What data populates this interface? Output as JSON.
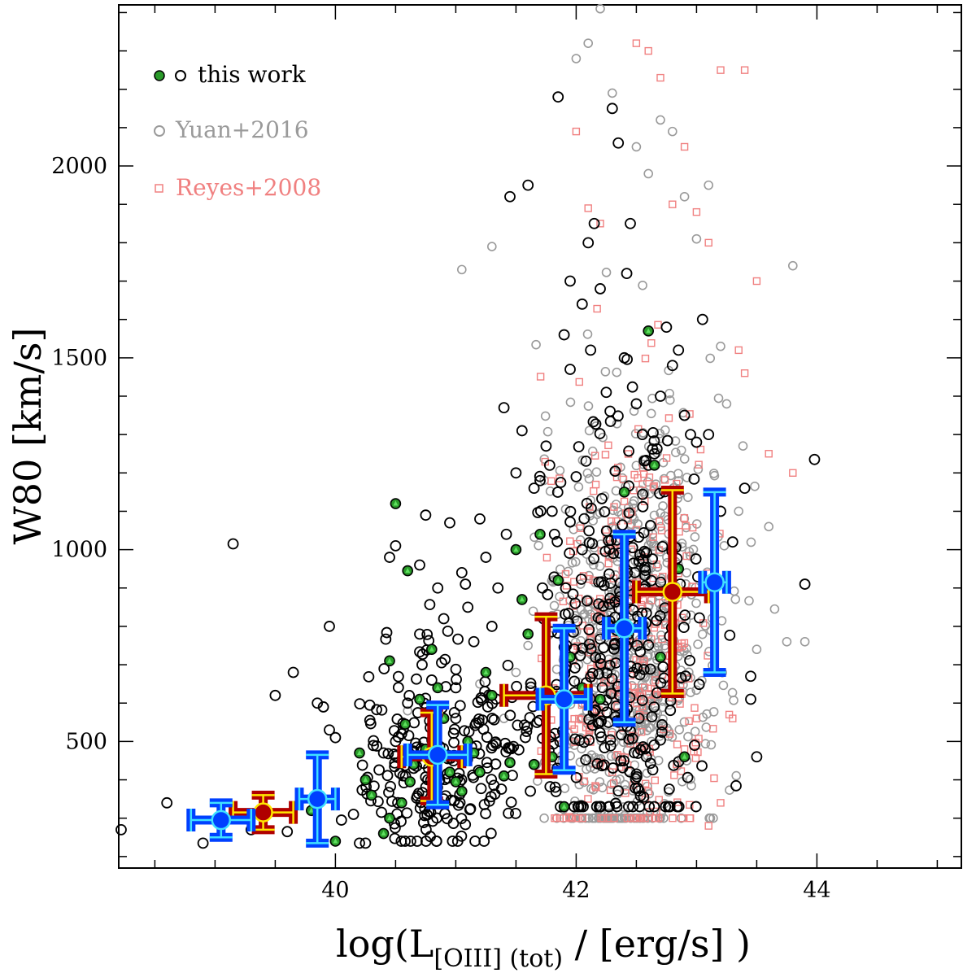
{
  "chart_data": {
    "type": "scatter",
    "xlabel_main": "log(L",
    "xlabel_sub": "[OIII] (tot)",
    "xlabel_tail": " / [erg/s] )",
    "ylabel": "W80 [km/s]",
    "xlim": [
      38.2,
      45.2
    ],
    "ylim": [
      170,
      2420
    ],
    "x_ticks": [
      40,
      42,
      44
    ],
    "y_ticks": [
      500,
      1000,
      1500,
      2000
    ],
    "legend": [
      {
        "name": "this work",
        "color": "#000000"
      },
      {
        "name": "Yuan+2016",
        "color": "#9a9a9a"
      },
      {
        "name": "Reyes+2008",
        "color": "#f08080"
      }
    ],
    "series": [
      {
        "name": "this work",
        "marker": "open-circle",
        "points": [
          [
            38.22,
            270
          ],
          [
            38.6,
            340
          ],
          [
            38.9,
            235
          ],
          [
            39.15,
            1015
          ],
          [
            39.3,
            270
          ],
          [
            39.5,
            620
          ],
          [
            39.6,
            265
          ],
          [
            39.65,
            680
          ],
          [
            39.85,
            600
          ],
          [
            39.9,
            590
          ],
          [
            39.95,
            800
          ],
          [
            39.95,
            530
          ],
          [
            40.0,
            510
          ],
          [
            40.05,
            295
          ],
          [
            40.15,
            310
          ],
          [
            40.2,
            235
          ],
          [
            40.25,
            235
          ],
          [
            40.4,
            470
          ],
          [
            40.45,
            980
          ],
          [
            40.5,
            1010
          ],
          [
            40.5,
            500
          ],
          [
            40.55,
            520
          ],
          [
            40.6,
            600
          ],
          [
            40.65,
            430
          ],
          [
            40.7,
            960
          ],
          [
            40.7,
            780
          ],
          [
            40.72,
            700
          ],
          [
            40.75,
            1090
          ],
          [
            40.8,
            660
          ],
          [
            40.85,
            900
          ],
          [
            40.9,
            820
          ],
          [
            40.95,
            1070
          ],
          [
            41.0,
            560
          ],
          [
            41.0,
            640
          ],
          [
            41.05,
            940
          ],
          [
            41.08,
            910
          ],
          [
            41.1,
            850
          ],
          [
            41.15,
            760
          ],
          [
            41.2,
            1080
          ],
          [
            41.25,
            980
          ],
          [
            41.3,
            800
          ],
          [
            41.35,
            900
          ],
          [
            41.4,
            1370
          ],
          [
            41.42,
            1040
          ],
          [
            41.45,
            1920
          ],
          [
            41.5,
            1200
          ],
          [
            41.55,
            1310
          ],
          [
            41.6,
            1950
          ],
          [
            41.65,
            1160
          ],
          [
            41.7,
            1180
          ],
          [
            41.72,
            900
          ],
          [
            41.75,
            1270
          ],
          [
            41.78,
            1220
          ],
          [
            41.8,
            1100
          ],
          [
            41.82,
            1040
          ],
          [
            41.85,
            2180
          ],
          [
            41.9,
            1560
          ],
          [
            41.95,
            1700
          ],
          [
            41.95,
            1470
          ],
          [
            42.0,
            1190
          ],
          [
            42.05,
            1640
          ],
          [
            42.05,
            1000
          ],
          [
            42.1,
            1800
          ],
          [
            42.12,
            1520
          ],
          [
            42.15,
            1850
          ],
          [
            42.2,
            1680
          ],
          [
            42.25,
            1410
          ],
          [
            42.3,
            2150
          ],
          [
            42.35,
            2060
          ],
          [
            42.4,
            1500
          ],
          [
            42.42,
            1720
          ],
          [
            42.45,
            1850
          ],
          [
            42.5,
            1380
          ],
          [
            42.55,
            1300
          ],
          [
            42.6,
            1220
          ],
          [
            42.65,
            1250
          ],
          [
            42.7,
            1400
          ],
          [
            42.75,
            1580
          ],
          [
            42.8,
            1480
          ],
          [
            42.85,
            1520
          ],
          [
            42.9,
            1350
          ],
          [
            42.95,
            1300
          ],
          [
            43.0,
            1280
          ],
          [
            43.05,
            1600
          ],
          [
            43.1,
            1300
          ],
          [
            43.2,
            1100
          ],
          [
            43.3,
            1020
          ],
          [
            43.4,
            1160
          ],
          [
            43.45,
            670
          ],
          [
            43.5,
            460
          ],
          [
            43.45,
            610
          ],
          [
            43.9,
            910
          ],
          [
            43.98,
            1235
          ]
        ]
      },
      {
        "name": "this work (green)",
        "marker": "green-filled-triangle",
        "points": [
          [
            39.8,
            320
          ],
          [
            40.0,
            240
          ],
          [
            40.2,
            470
          ],
          [
            40.25,
            400
          ],
          [
            40.3,
            360
          ],
          [
            40.4,
            260
          ],
          [
            40.45,
            300
          ],
          [
            40.45,
            710
          ],
          [
            40.5,
            1120
          ],
          [
            40.55,
            340
          ],
          [
            40.58,
            545
          ],
          [
            40.6,
            945
          ],
          [
            40.62,
            395
          ],
          [
            40.65,
            440
          ],
          [
            40.7,
            610
          ],
          [
            40.75,
            480
          ],
          [
            40.8,
            740
          ],
          [
            40.85,
            640
          ],
          [
            40.9,
            560
          ],
          [
            40.95,
            420
          ],
          [
            41.0,
            395
          ],
          [
            41.05,
            370
          ],
          [
            41.1,
            500
          ],
          [
            41.15,
            470
          ],
          [
            41.2,
            420
          ],
          [
            41.25,
            680
          ],
          [
            41.3,
            620
          ],
          [
            41.4,
            410
          ],
          [
            41.45,
            445
          ],
          [
            41.5,
            1000
          ],
          [
            41.55,
            870
          ],
          [
            41.6,
            780
          ],
          [
            41.65,
            440
          ],
          [
            41.7,
            1040
          ],
          [
            41.75,
            600
          ],
          [
            41.8,
            460
          ],
          [
            41.85,
            920
          ],
          [
            41.9,
            330
          ],
          [
            41.95,
            720
          ],
          [
            42.05,
            640
          ],
          [
            42.2,
            610
          ],
          [
            42.35,
            550
          ],
          [
            42.4,
            1150
          ],
          [
            42.6,
            1570
          ],
          [
            42.65,
            1220
          ],
          [
            42.7,
            720
          ],
          [
            42.85,
            950
          ],
          [
            42.9,
            460
          ]
        ]
      },
      {
        "name": "Yuan+2016",
        "marker": "open-circle-grey",
        "points": [
          [
            41.05,
            1730
          ],
          [
            41.3,
            1790
          ],
          [
            41.5,
            680
          ],
          [
            42.0,
            2280
          ],
          [
            42.1,
            2320
          ],
          [
            42.2,
            2410
          ],
          [
            42.3,
            2190
          ],
          [
            42.5,
            2050
          ],
          [
            42.6,
            1980
          ],
          [
            42.7,
            2120
          ],
          [
            42.8,
            2090
          ],
          [
            42.9,
            1920
          ],
          [
            43.0,
            1810
          ],
          [
            43.1,
            1950
          ],
          [
            43.2,
            1530
          ],
          [
            43.25,
            1380
          ],
          [
            43.35,
            1100
          ],
          [
            43.5,
            740
          ],
          [
            43.6,
            1060
          ],
          [
            43.75,
            760
          ],
          [
            43.8,
            1740
          ],
          [
            43.9,
            760
          ],
          [
            40.6,
            580
          ],
          [
            41.2,
            650
          ],
          [
            41.4,
            560
          ],
          [
            41.6,
            750
          ]
        ]
      },
      {
        "name": "Reyes+2008",
        "marker": "open-square-salmon",
        "points": [
          [
            42.0,
            2090
          ],
          [
            42.1,
            1890
          ],
          [
            42.2,
            1850
          ],
          [
            42.5,
            2320
          ],
          [
            42.6,
            2300
          ],
          [
            42.7,
            2230
          ],
          [
            42.8,
            1900
          ],
          [
            42.9,
            2050
          ],
          [
            43.0,
            1880
          ],
          [
            43.1,
            1800
          ],
          [
            43.2,
            2250
          ],
          [
            43.35,
            1520
          ],
          [
            43.4,
            2250
          ],
          [
            43.5,
            1700
          ],
          [
            43.6,
            1250
          ],
          [
            43.8,
            1200
          ],
          [
            43.4,
            1460
          ],
          [
            43.0,
            560
          ],
          [
            43.2,
            340
          ],
          [
            43.3,
            560
          ],
          [
            43.1,
            280
          ],
          [
            42.3,
            420
          ],
          [
            42.6,
            370
          ],
          [
            42.9,
            480
          ]
        ]
      }
    ],
    "summary_points": [
      {
        "name": "binned (red)",
        "color": "#b00000",
        "inner": "#ffe600",
        "points": [
          {
            "x": 39.4,
            "y": 315,
            "xerr": [
              0.25,
              0.25
            ],
            "yerr": [
              45,
              45
            ]
          },
          {
            "x": 40.8,
            "y": 460,
            "xerr": [
              0.25,
              0.25
            ],
            "yerr": [
              115,
              115
            ]
          },
          {
            "x": 41.75,
            "y": 620,
            "xerr": [
              0.35,
              0.35
            ],
            "yerr": [
              205,
              205
            ]
          },
          {
            "x": 42.8,
            "y": 890,
            "xerr": [
              0.3,
              0.3
            ],
            "yerr": [
              265,
              265
            ]
          }
        ]
      },
      {
        "name": "binned (blue)",
        "color": "#0040ff",
        "inner": "#40e0ff",
        "points": [
          {
            "x": 39.05,
            "y": 295,
            "xerr": [
              0.25,
              0.25
            ],
            "yerr": [
              45,
              45
            ]
          },
          {
            "x": 39.85,
            "y": 350,
            "xerr": [
              0.15,
              0.15
            ],
            "yerr": [
              115,
              115
            ]
          },
          {
            "x": 40.85,
            "y": 465,
            "xerr": [
              0.25,
              0.25
            ],
            "yerr": [
              130,
              130
            ]
          },
          {
            "x": 41.9,
            "y": 610,
            "xerr": [
              0.2,
              0.2
            ],
            "yerr": [
              185,
              185
            ]
          },
          {
            "x": 42.4,
            "y": 795,
            "xerr": [
              0.15,
              0.15
            ],
            "yerr": [
              245,
              245
            ]
          },
          {
            "x": 43.15,
            "y": 915,
            "xerr": [
              0.1,
              0.1
            ],
            "yerr": [
              235,
              235
            ]
          }
        ]
      }
    ]
  }
}
